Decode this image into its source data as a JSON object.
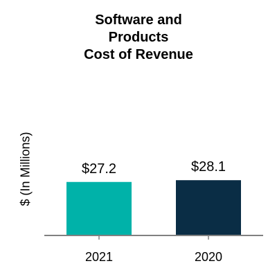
{
  "chart_data": {
    "type": "bar",
    "title_lines": [
      "Software and",
      "Products",
      "Cost of Revenue"
    ],
    "ylabel": "$ (In Millions)",
    "xlabel": "",
    "categories": [
      "2021",
      "2020"
    ],
    "values": [
      27.2,
      28.1
    ],
    "data_labels": [
      "$27.2",
      "$28.1"
    ],
    "colors": [
      "#00b2a9",
      "#0a2d45"
    ],
    "axis_color": "#808080",
    "ylim": [
      0,
      100
    ],
    "grid": false,
    "legend": "none"
  }
}
